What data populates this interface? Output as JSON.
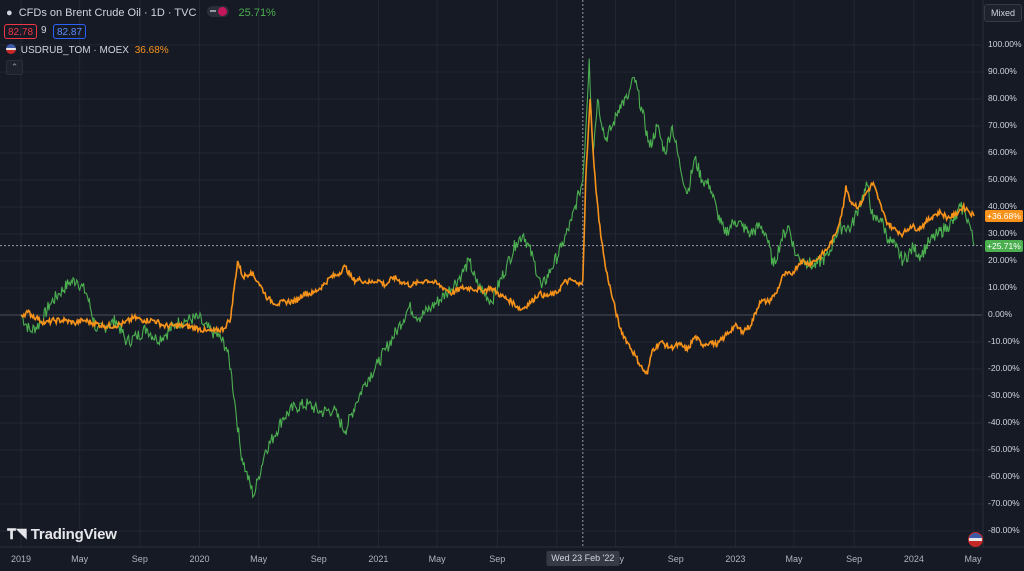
{
  "header": {
    "symbol_title": "CFDs on Brent Crude Oil · 1D · TVC",
    "symbol_change": "25.71%",
    "bid_value": "82.78",
    "spread_value": "9",
    "ask_value": "82.87",
    "compare_title": "USDRUB_TOM · MOEX",
    "compare_change": "36.68%",
    "scale_mode": "Mixed"
  },
  "branding": {
    "logo_text": "TradingView"
  },
  "crosshair": {
    "date_label": "Wed 23 Feb '22"
  },
  "colors": {
    "brent": "#4caf50",
    "usdrub": "#f7931a",
    "background": "#161a25",
    "grid": "#232734"
  },
  "chart_data": {
    "type": "line",
    "x_unit": "date",
    "y_unit": "percent change",
    "ylim": [
      -80,
      100
    ],
    "y_ticks": [
      "100.00%",
      "90.00%",
      "80.00%",
      "70.00%",
      "60.00%",
      "50.00%",
      "40.00%",
      "30.00%",
      "20.00%",
      "10.00%",
      "0.00%",
      "-10.00%",
      "-20.00%",
      "-30.00%",
      "-40.00%",
      "-50.00%",
      "-60.00%",
      "-70.00%",
      "-80.00%"
    ],
    "x_ticks": [
      "2019",
      "May",
      "Sep",
      "2020",
      "May",
      "Sep",
      "2021",
      "May",
      "Sep",
      "2022",
      "May",
      "Sep",
      "2023",
      "May",
      "Sep",
      "2024",
      "May"
    ],
    "grid": true,
    "series": [
      {
        "name": "CFDs on Brent Crude Oil",
        "last_label": "+25.71%",
        "points": [
          [
            "2019-01-01",
            0
          ],
          [
            "2019-01-20",
            -6
          ],
          [
            "2019-02-10",
            -3
          ],
          [
            "2019-03-01",
            4
          ],
          [
            "2019-03-20",
            8
          ],
          [
            "2019-04-10",
            12
          ],
          [
            "2019-04-25",
            13
          ],
          [
            "2019-05-15",
            8
          ],
          [
            "2019-06-05",
            -6
          ],
          [
            "2019-06-25",
            -4
          ],
          [
            "2019-07-15",
            -2
          ],
          [
            "2019-08-05",
            -10
          ],
          [
            "2019-08-25",
            -8
          ],
          [
            "2019-09-15",
            -5
          ],
          [
            "2019-10-05",
            -9
          ],
          [
            "2019-10-25",
            -7
          ],
          [
            "2019-11-15",
            -3
          ],
          [
            "2019-12-05",
            -2
          ],
          [
            "2019-12-31",
            -1
          ],
          [
            "2020-01-10",
            -4
          ],
          [
            "2020-01-25",
            -6
          ],
          [
            "2020-02-10",
            -8
          ],
          [
            "2020-02-25",
            -12
          ],
          [
            "2020-03-05",
            -20
          ],
          [
            "2020-03-15",
            -35
          ],
          [
            "2020-03-25",
            -50
          ],
          [
            "2020-04-05",
            -58
          ],
          [
            "2020-04-21",
            -67
          ],
          [
            "2020-05-01",
            -60
          ],
          [
            "2020-05-15",
            -50
          ],
          [
            "2020-06-01",
            -45
          ],
          [
            "2020-06-20",
            -38
          ],
          [
            "2020-07-15",
            -34
          ],
          [
            "2020-08-10",
            -33
          ],
          [
            "2020-09-05",
            -36
          ],
          [
            "2020-10-01",
            -35
          ],
          [
            "2020-10-25",
            -43
          ],
          [
            "2020-11-15",
            -33
          ],
          [
            "2020-12-05",
            -25
          ],
          [
            "2020-12-31",
            -18
          ],
          [
            "2021-01-15",
            -13
          ],
          [
            "2021-02-10",
            -5
          ],
          [
            "2021-03-05",
            3
          ],
          [
            "2021-03-25",
            -1
          ],
          [
            "2021-04-20",
            3
          ],
          [
            "2021-05-20",
            8
          ],
          [
            "2021-06-20",
            15
          ],
          [
            "2021-07-06",
            20
          ],
          [
            "2021-07-20",
            12
          ],
          [
            "2021-08-20",
            5
          ],
          [
            "2021-09-20",
            18
          ],
          [
            "2021-10-10",
            27
          ],
          [
            "2021-10-25",
            30
          ],
          [
            "2021-11-15",
            20
          ],
          [
            "2021-12-01",
            10
          ],
          [
            "2021-12-20",
            17
          ],
          [
            "2022-01-10",
            25
          ],
          [
            "2022-01-31",
            35
          ],
          [
            "2022-02-15",
            45
          ],
          [
            "2022-02-23",
            50
          ],
          [
            "2022-03-03",
            75
          ],
          [
            "2022-03-08",
            95
          ],
          [
            "2022-03-16",
            60
          ],
          [
            "2022-03-25",
            80
          ],
          [
            "2022-04-10",
            65
          ],
          [
            "2022-04-25",
            70
          ],
          [
            "2022-05-10",
            78
          ],
          [
            "2022-05-25",
            80
          ],
          [
            "2022-06-08",
            88
          ],
          [
            "2022-06-25",
            75
          ],
          [
            "2022-07-10",
            62
          ],
          [
            "2022-07-25",
            70
          ],
          [
            "2022-08-10",
            60
          ],
          [
            "2022-08-25",
            70
          ],
          [
            "2022-09-10",
            55
          ],
          [
            "2022-09-25",
            45
          ],
          [
            "2022-10-10",
            58
          ],
          [
            "2022-10-25",
            50
          ],
          [
            "2022-11-10",
            48
          ],
          [
            "2022-11-25",
            38
          ],
          [
            "2022-12-10",
            30
          ],
          [
            "2022-12-31",
            35
          ],
          [
            "2023-01-15",
            33
          ],
          [
            "2023-02-01",
            30
          ],
          [
            "2023-02-20",
            33
          ],
          [
            "2023-03-05",
            30
          ],
          [
            "2023-03-20",
            18
          ],
          [
            "2023-04-05",
            28
          ],
          [
            "2023-04-20",
            33
          ],
          [
            "2023-05-05",
            22
          ],
          [
            "2023-05-25",
            20
          ],
          [
            "2023-06-10",
            18
          ],
          [
            "2023-06-25",
            20
          ],
          [
            "2023-07-10",
            22
          ],
          [
            "2023-07-25",
            30
          ],
          [
            "2023-08-10",
            33
          ],
          [
            "2023-08-25",
            32
          ],
          [
            "2023-09-10",
            40
          ],
          [
            "2023-09-28",
            48
          ],
          [
            "2023-10-10",
            35
          ],
          [
            "2023-10-25",
            36
          ],
          [
            "2023-11-10",
            28
          ],
          [
            "2023-11-25",
            25
          ],
          [
            "2023-12-10",
            20
          ],
          [
            "2023-12-31",
            25
          ],
          [
            "2024-01-15",
            22
          ],
          [
            "2024-02-01",
            27
          ],
          [
            "2024-02-20",
            30
          ],
          [
            "2024-03-10",
            33
          ],
          [
            "2024-03-25",
            35
          ],
          [
            "2024-04-05",
            40
          ],
          [
            "2024-04-15",
            38
          ],
          [
            "2024-04-25",
            33
          ],
          [
            "2024-05-03",
            25.71
          ]
        ]
      },
      {
        "name": "USDRUB_TOM · MOEX",
        "last_label": "+36.68%",
        "points": [
          [
            "2019-01-01",
            0
          ],
          [
            "2019-01-15",
            1
          ],
          [
            "2019-02-01",
            -1
          ],
          [
            "2019-02-20",
            -3
          ],
          [
            "2019-03-10",
            -2
          ],
          [
            "2019-04-01",
            -2
          ],
          [
            "2019-04-20",
            -3
          ],
          [
            "2019-05-10",
            -2
          ],
          [
            "2019-05-30",
            -3
          ],
          [
            "2019-06-20",
            -4
          ],
          [
            "2019-07-10",
            -4
          ],
          [
            "2019-08-01",
            -3
          ],
          [
            "2019-08-20",
            -1
          ],
          [
            "2019-09-10",
            -2
          ],
          [
            "2019-10-01",
            -2
          ],
          [
            "2019-10-20",
            -4
          ],
          [
            "2019-11-10",
            -4
          ],
          [
            "2019-12-01",
            -4
          ],
          [
            "2019-12-31",
            -5
          ],
          [
            "2020-01-15",
            -6
          ],
          [
            "2020-02-01",
            -6
          ],
          [
            "2020-02-20",
            -5
          ],
          [
            "2020-03-05",
            -1
          ],
          [
            "2020-03-12",
            10
          ],
          [
            "2020-03-19",
            20
          ],
          [
            "2020-03-30",
            14
          ],
          [
            "2020-04-15",
            16
          ],
          [
            "2020-05-01",
            12
          ],
          [
            "2020-05-20",
            6
          ],
          [
            "2020-06-10",
            4
          ],
          [
            "2020-06-25",
            5
          ],
          [
            "2020-07-15",
            5
          ],
          [
            "2020-08-01",
            8
          ],
          [
            "2020-08-20",
            8
          ],
          [
            "2020-09-10",
            11
          ],
          [
            "2020-09-25",
            14
          ],
          [
            "2020-10-10",
            15
          ],
          [
            "2020-10-25",
            18
          ],
          [
            "2020-11-10",
            13
          ],
          [
            "2020-11-25",
            13
          ],
          [
            "2020-12-15",
            12
          ],
          [
            "2020-12-31",
            13
          ],
          [
            "2021-01-15",
            11
          ],
          [
            "2021-02-01",
            14
          ],
          [
            "2021-02-20",
            12
          ],
          [
            "2021-03-10",
            11
          ],
          [
            "2021-03-25",
            12
          ],
          [
            "2021-04-10",
            13
          ],
          [
            "2021-04-25",
            12
          ],
          [
            "2021-05-15",
            10
          ],
          [
            "2021-06-01",
            8
          ],
          [
            "2021-06-20",
            10
          ],
          [
            "2021-07-10",
            10
          ],
          [
            "2021-08-01",
            9
          ],
          [
            "2021-08-20",
            10
          ],
          [
            "2021-09-10",
            7
          ],
          [
            "2021-09-30",
            5
          ],
          [
            "2021-10-20",
            2
          ],
          [
            "2021-11-10",
            5
          ],
          [
            "2021-11-25",
            8
          ],
          [
            "2021-12-10",
            7
          ],
          [
            "2021-12-31",
            8
          ],
          [
            "2022-01-15",
            12
          ],
          [
            "2022-02-01",
            13
          ],
          [
            "2022-02-15",
            11
          ],
          [
            "2022-02-23",
            13
          ],
          [
            "2022-03-01",
            50
          ],
          [
            "2022-03-10",
            80
          ],
          [
            "2022-03-18",
            55
          ],
          [
            "2022-03-28",
            35
          ],
          [
            "2022-04-10",
            18
          ],
          [
            "2022-04-25",
            6
          ],
          [
            "2022-05-10",
            -5
          ],
          [
            "2022-05-25",
            -10
          ],
          [
            "2022-06-10",
            -15
          ],
          [
            "2022-06-25",
            -20
          ],
          [
            "2022-07-05",
            -22
          ],
          [
            "2022-07-15",
            -13
          ],
          [
            "2022-08-01",
            -10
          ],
          [
            "2022-08-20",
            -12
          ],
          [
            "2022-09-10",
            -11
          ],
          [
            "2022-09-25",
            -13
          ],
          [
            "2022-10-10",
            -8
          ],
          [
            "2022-10-25",
            -11
          ],
          [
            "2022-11-10",
            -10
          ],
          [
            "2022-11-25",
            -11
          ],
          [
            "2022-12-10",
            -8
          ],
          [
            "2022-12-31",
            -4
          ],
          [
            "2023-01-15",
            -6
          ],
          [
            "2023-02-01",
            -4
          ],
          [
            "2023-02-20",
            5
          ],
          [
            "2023-03-10",
            5
          ],
          [
            "2023-03-25",
            8
          ],
          [
            "2023-04-10",
            15
          ],
          [
            "2023-04-25",
            15
          ],
          [
            "2023-05-15",
            20
          ],
          [
            "2023-06-01",
            19
          ],
          [
            "2023-06-20",
            21
          ],
          [
            "2023-07-10",
            25
          ],
          [
            "2023-07-25",
            30
          ],
          [
            "2023-08-10",
            40
          ],
          [
            "2023-08-15",
            48
          ],
          [
            "2023-08-25",
            42
          ],
          [
            "2023-09-10",
            40
          ],
          [
            "2023-09-25",
            45
          ],
          [
            "2023-10-10",
            49
          ],
          [
            "2023-10-20",
            43
          ],
          [
            "2023-11-05",
            35
          ],
          [
            "2023-11-20",
            32
          ],
          [
            "2023-12-10",
            30
          ],
          [
            "2023-12-25",
            33
          ],
          [
            "2024-01-10",
            32
          ],
          [
            "2024-01-25",
            34
          ],
          [
            "2024-02-10",
            37
          ],
          [
            "2024-02-25",
            38
          ],
          [
            "2024-03-10",
            36
          ],
          [
            "2024-03-25",
            37
          ],
          [
            "2024-04-10",
            40
          ],
          [
            "2024-04-20",
            39
          ],
          [
            "2024-05-03",
            36.68
          ]
        ]
      }
    ]
  }
}
